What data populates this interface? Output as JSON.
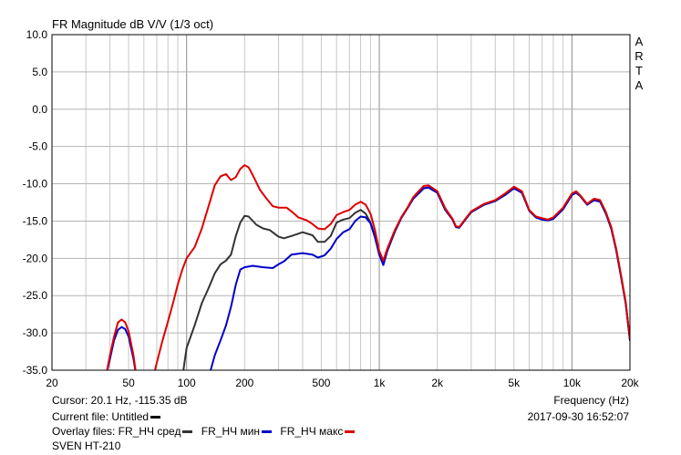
{
  "chart_data": {
    "type": "line",
    "title": "FR Magnitude dB V/V (1/3 oct)",
    "watermark": "ARTA",
    "xlabel": "Frequency (Hz)",
    "x_scale": "log",
    "xlim": [
      20,
      20000
    ],
    "ylim": [
      -35,
      10
    ],
    "x_ticks": [
      20,
      50,
      100,
      200,
      500,
      1000,
      2000,
      5000,
      10000,
      20000
    ],
    "x_tick_labels": [
      "20",
      "50",
      "100",
      "200",
      "500",
      "1k",
      "2k",
      "5k",
      "10k",
      "20k"
    ],
    "y_ticks": [
      10,
      5,
      0,
      -5,
      -10,
      -15,
      -20,
      -25,
      -30,
      -35
    ],
    "y_tick_labels": [
      "10.0",
      "5.0",
      "0.0",
      "-5.0",
      "-10.0",
      "-15.0",
      "-20.0",
      "-25.0",
      "-30.0",
      "-35.0"
    ],
    "grid": true,
    "series": [
      {
        "name": "FR_НЧ сред",
        "color": "#333333",
        "points": [
          [
            95,
            -36
          ],
          [
            100,
            -32
          ],
          [
            110,
            -29
          ],
          [
            120,
            -26
          ],
          [
            130,
            -24
          ],
          [
            140,
            -22
          ],
          [
            150,
            -20.8
          ],
          [
            160,
            -20.3
          ],
          [
            170,
            -19.5
          ],
          [
            180,
            -17
          ],
          [
            190,
            -15.2
          ],
          [
            200,
            -14.3
          ],
          [
            210,
            -14.4
          ],
          [
            230,
            -15.5
          ],
          [
            250,
            -16
          ],
          [
            270,
            -16.2
          ],
          [
            300,
            -17.1
          ],
          [
            320,
            -17.3
          ],
          [
            350,
            -17
          ],
          [
            400,
            -16.5
          ],
          [
            450,
            -16.9
          ],
          [
            480,
            -17.8
          ],
          [
            520,
            -17.8
          ],
          [
            560,
            -17
          ],
          [
            600,
            -15.2
          ],
          [
            650,
            -14.8
          ],
          [
            700,
            -14.6
          ],
          [
            750,
            -13.9
          ],
          [
            800,
            -13.5
          ],
          [
            850,
            -14
          ],
          [
            900,
            -15.2
          ],
          [
            950,
            -17
          ],
          [
            1000,
            -19.5
          ],
          [
            1050,
            -20.7
          ],
          [
            1100,
            -19
          ],
          [
            1200,
            -16.5
          ],
          [
            1300,
            -14.6
          ],
          [
            1400,
            -13.3
          ],
          [
            1500,
            -12
          ],
          [
            1600,
            -11.3
          ],
          [
            1700,
            -10.6
          ],
          [
            1800,
            -10.5
          ],
          [
            2000,
            -11.2
          ],
          [
            2200,
            -13.5
          ],
          [
            2400,
            -14.8
          ],
          [
            2500,
            -15.8
          ],
          [
            2600,
            -15.9
          ],
          [
            2800,
            -14.8
          ],
          [
            3000,
            -13.8
          ],
          [
            3500,
            -12.8
          ],
          [
            4000,
            -12.3
          ],
          [
            4500,
            -11.5
          ],
          [
            5000,
            -10.6
          ],
          [
            5500,
            -11.2
          ],
          [
            6000,
            -13.6
          ],
          [
            6500,
            -14.5
          ],
          [
            7000,
            -14.8
          ],
          [
            7500,
            -14.9
          ],
          [
            8000,
            -14.7
          ],
          [
            9000,
            -13.4
          ],
          [
            10000,
            -11.5
          ],
          [
            10500,
            -11.2
          ],
          [
            11000,
            -11.6
          ],
          [
            12000,
            -12.8
          ],
          [
            13000,
            -12.2
          ],
          [
            14000,
            -12.4
          ],
          [
            15000,
            -14
          ],
          [
            16000,
            -16
          ],
          [
            17000,
            -19
          ],
          [
            18000,
            -22.5
          ],
          [
            19000,
            -26
          ],
          [
            20000,
            -31
          ]
        ]
      },
      {
        "name": "FR_НЧ мин",
        "color": "#0000cc",
        "points": [
          [
            38,
            -36
          ],
          [
            40,
            -33.5
          ],
          [
            42,
            -31
          ],
          [
            44,
            -29.6
          ],
          [
            46,
            -29.2
          ],
          [
            48,
            -29.5
          ],
          [
            50,
            -30.5
          ],
          [
            53,
            -33.5
          ],
          [
            55,
            -36
          ],
          [
            130,
            -36
          ],
          [
            140,
            -33
          ],
          [
            150,
            -31
          ],
          [
            160,
            -29
          ],
          [
            170,
            -26.5
          ],
          [
            180,
            -23.5
          ],
          [
            190,
            -21.5
          ],
          [
            200,
            -21.2
          ],
          [
            220,
            -21
          ],
          [
            250,
            -21.2
          ],
          [
            280,
            -21.3
          ],
          [
            300,
            -20.8
          ],
          [
            320,
            -20.4
          ],
          [
            350,
            -19.5
          ],
          [
            400,
            -19.3
          ],
          [
            450,
            -19.5
          ],
          [
            480,
            -19.9
          ],
          [
            520,
            -19.6
          ],
          [
            560,
            -18.7
          ],
          [
            600,
            -17.4
          ],
          [
            650,
            -16.5
          ],
          [
            700,
            -16.1
          ],
          [
            750,
            -15
          ],
          [
            800,
            -14.4
          ],
          [
            850,
            -14.5
          ],
          [
            900,
            -15.3
          ],
          [
            950,
            -17.2
          ],
          [
            1000,
            -19.5
          ],
          [
            1050,
            -20.9
          ],
          [
            1100,
            -19
          ],
          [
            1200,
            -16.5
          ],
          [
            1300,
            -14.6
          ],
          [
            1400,
            -13.3
          ],
          [
            1500,
            -12
          ],
          [
            1600,
            -11.3
          ],
          [
            1700,
            -10.6
          ],
          [
            1800,
            -10.5
          ],
          [
            2000,
            -11.2
          ],
          [
            2200,
            -13.5
          ],
          [
            2400,
            -14.8
          ],
          [
            2500,
            -15.8
          ],
          [
            2600,
            -15.9
          ],
          [
            2800,
            -14.8
          ],
          [
            3000,
            -13.8
          ],
          [
            3500,
            -12.8
          ],
          [
            4000,
            -12.3
          ],
          [
            4500,
            -11.5
          ],
          [
            5000,
            -10.6
          ],
          [
            5500,
            -11.2
          ],
          [
            6000,
            -13.6
          ],
          [
            6500,
            -14.5
          ],
          [
            7000,
            -14.8
          ],
          [
            7500,
            -14.9
          ],
          [
            8000,
            -14.7
          ],
          [
            9000,
            -13.4
          ],
          [
            10000,
            -11.5
          ],
          [
            10500,
            -11.2
          ],
          [
            11000,
            -11.6
          ],
          [
            12000,
            -12.8
          ],
          [
            13000,
            -12.2
          ],
          [
            14000,
            -12.4
          ],
          [
            15000,
            -14
          ],
          [
            16000,
            -16
          ],
          [
            17000,
            -19
          ],
          [
            18000,
            -22.5
          ],
          [
            19000,
            -26
          ],
          [
            20000,
            -31
          ]
        ]
      },
      {
        "name": "FR_НЧ макс",
        "color": "#dd0000",
        "points": [
          [
            38,
            -36
          ],
          [
            40,
            -33
          ],
          [
            42,
            -30.5
          ],
          [
            44,
            -28.6
          ],
          [
            46,
            -28.2
          ],
          [
            48,
            -28.6
          ],
          [
            50,
            -29.8
          ],
          [
            53,
            -33
          ],
          [
            55,
            -36
          ],
          [
            67,
            -36
          ],
          [
            70,
            -34
          ],
          [
            75,
            -31
          ],
          [
            80,
            -28.5
          ],
          [
            85,
            -26
          ],
          [
            90,
            -23.5
          ],
          [
            95,
            -21.5
          ],
          [
            100,
            -20
          ],
          [
            110,
            -18.5
          ],
          [
            120,
            -16
          ],
          [
            130,
            -13
          ],
          [
            140,
            -10.2
          ],
          [
            150,
            -9
          ],
          [
            160,
            -8.7
          ],
          [
            170,
            -9.5
          ],
          [
            180,
            -9.1
          ],
          [
            190,
            -8
          ],
          [
            200,
            -7.5
          ],
          [
            210,
            -7.8
          ],
          [
            220,
            -8.8
          ],
          [
            240,
            -10.8
          ],
          [
            260,
            -12
          ],
          [
            280,
            -13
          ],
          [
            300,
            -13.2
          ],
          [
            330,
            -13.2
          ],
          [
            350,
            -13.7
          ],
          [
            380,
            -14.5
          ],
          [
            420,
            -14.9
          ],
          [
            450,
            -15.4
          ],
          [
            480,
            -16
          ],
          [
            520,
            -16.1
          ],
          [
            560,
            -15.4
          ],
          [
            600,
            -14.2
          ],
          [
            650,
            -13.8
          ],
          [
            700,
            -13.5
          ],
          [
            750,
            -12.8
          ],
          [
            800,
            -12.4
          ],
          [
            850,
            -12.8
          ],
          [
            900,
            -14
          ],
          [
            950,
            -16.2
          ],
          [
            1000,
            -19
          ],
          [
            1050,
            -20.3
          ],
          [
            1100,
            -18.7
          ],
          [
            1200,
            -16.3
          ],
          [
            1300,
            -14.5
          ],
          [
            1400,
            -13.2
          ],
          [
            1500,
            -11.8
          ],
          [
            1600,
            -11
          ],
          [
            1700,
            -10.3
          ],
          [
            1800,
            -10.2
          ],
          [
            2000,
            -11
          ],
          [
            2200,
            -13.3
          ],
          [
            2400,
            -14.7
          ],
          [
            2500,
            -15.7
          ],
          [
            2600,
            -15.8
          ],
          [
            2800,
            -14.7
          ],
          [
            3000,
            -13.7
          ],
          [
            3500,
            -12.7
          ],
          [
            4000,
            -12.2
          ],
          [
            4500,
            -11.3
          ],
          [
            5000,
            -10.4
          ],
          [
            5500,
            -11
          ],
          [
            6000,
            -13.5
          ],
          [
            6500,
            -14.4
          ],
          [
            7000,
            -14.6
          ],
          [
            7500,
            -14.8
          ],
          [
            8000,
            -14.5
          ],
          [
            9000,
            -13.2
          ],
          [
            10000,
            -11.3
          ],
          [
            10500,
            -11
          ],
          [
            11000,
            -11.5
          ],
          [
            12000,
            -12.7
          ],
          [
            13000,
            -12
          ],
          [
            14000,
            -12.2
          ],
          [
            15000,
            -13.8
          ],
          [
            16000,
            -15.8
          ],
          [
            17000,
            -18.8
          ],
          [
            18000,
            -22.3
          ],
          [
            19000,
            -25.8
          ],
          [
            20000,
            -30.8
          ]
        ]
      }
    ]
  },
  "info": {
    "cursor": "Cursor: 20.1 Hz, -115.35 dB",
    "current_file": "Current file: Untitled",
    "overlay_prefix": "Overlay files: FR_НЧ сред",
    "overlay_2": "FR_НЧ мин",
    "overlay_3": "FR_НЧ макс",
    "device": "SVEN HT-210",
    "freq_label": "Frequency (Hz)",
    "timestamp": "2017-09-30  16:52:07"
  }
}
